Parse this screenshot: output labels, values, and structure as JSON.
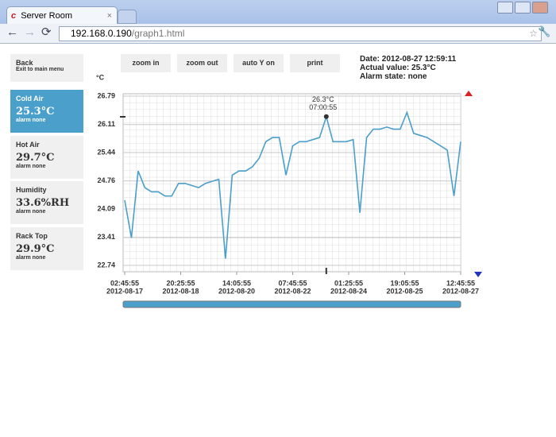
{
  "browser": {
    "tab_title": "Server Room",
    "url_host": "192.168.0.190",
    "url_path": "/graph1.html"
  },
  "sidebar": {
    "back": {
      "title": "Back",
      "subtitle": "Exit to main menu"
    },
    "sensors": [
      {
        "name": "Cold Air",
        "value": "25.3°C",
        "state": "alarm none"
      },
      {
        "name": "Hot Air",
        "value": "29.7°C",
        "state": "alarm none"
      },
      {
        "name": "Humidity",
        "value": "33.6%RH",
        "state": "alarm none"
      },
      {
        "name": "Rack Top",
        "value": "29.9°C",
        "state": "alarm none"
      }
    ]
  },
  "toolbar": [
    "zoom in",
    "zoom out",
    "auto Y on",
    "print"
  ],
  "status": {
    "date": "Date: 2012-08-27 12:59:11",
    "actual": "Actual value: 25.3°C",
    "alarm": "Alarm state: none"
  },
  "chart_data": {
    "type": "line",
    "y_unit": "°C",
    "x": [
      "2012-08-17 02:45:55",
      "2012-08-17 07:45:55",
      "2012-08-17 12:45:55",
      "2012-08-17 17:45:55",
      "2012-08-17 22:45:55",
      "2012-08-18 03:45:55",
      "2012-08-18 08:45:55",
      "2012-08-18 13:45:55",
      "2012-08-18 18:45:55",
      "2012-08-18 23:45:55",
      "2012-08-19 04:45:55",
      "2012-08-19 09:45:55",
      "2012-08-19 14:45:55",
      "2012-08-19 19:45:55",
      "2012-08-20 00:45:55",
      "2012-08-20 05:45:55",
      "2012-08-20 10:45:55",
      "2012-08-20 15:45:55",
      "2012-08-20 20:45:55",
      "2012-08-21 01:45:55",
      "2012-08-21 06:45:55",
      "2012-08-21 11:45:55",
      "2012-08-21 16:45:55",
      "2012-08-21 21:45:55",
      "2012-08-22 02:45:55",
      "2012-08-22 07:45:55",
      "2012-08-22 12:45:55",
      "2012-08-22 17:45:55",
      "2012-08-22 22:45:55",
      "2012-08-23 03:45:55",
      "2012-08-23 08:45:55",
      "2012-08-23 13:45:55",
      "2012-08-23 18:45:55",
      "2012-08-23 23:45:55",
      "2012-08-24 04:45:55",
      "2012-08-24 09:45:55",
      "2012-08-24 14:45:55",
      "2012-08-24 19:45:55",
      "2012-08-25 00:45:55",
      "2012-08-25 05:45:55",
      "2012-08-25 10:45:55",
      "2012-08-25 15:45:55",
      "2012-08-25 20:45:55",
      "2012-08-26 01:45:55",
      "2012-08-26 06:45:55",
      "2012-08-26 11:45:55",
      "2012-08-26 16:45:55",
      "2012-08-26 21:45:55",
      "2012-08-27 02:45:55",
      "2012-08-27 07:45:55",
      "2012-08-27 12:45:55"
    ],
    "series": [
      {
        "color": "#4a9fcb",
        "values": [
          24.3,
          23.4,
          25.0,
          24.6,
          24.5,
          24.5,
          24.4,
          24.4,
          24.7,
          24.7,
          24.65,
          24.6,
          24.7,
          24.75,
          24.8,
          22.9,
          24.9,
          25.0,
          25.0,
          25.1,
          25.3,
          25.7,
          25.8,
          25.8,
          24.9,
          25.6,
          25.7,
          25.7,
          25.75,
          25.8,
          26.3,
          25.7,
          25.7,
          25.7,
          25.75,
          24.0,
          25.8,
          26.0,
          26.0,
          26.05,
          26.0,
          26.0,
          26.4,
          25.9,
          25.85,
          25.8,
          25.7,
          25.6,
          25.5,
          24.4,
          25.7
        ]
      }
    ],
    "ylim": [
      22.74,
      26.79
    ],
    "yticks": [
      22.74,
      23.41,
      24.09,
      24.76,
      25.44,
      26.11,
      26.79
    ],
    "xlim": [
      "2012-08-17 02:45:55",
      "2012-08-27 12:45:55"
    ],
    "xticks": [
      {
        "time": "02:45:55",
        "date": "2012-08-17"
      },
      {
        "time": "20:25:55",
        "date": "2012-08-18"
      },
      {
        "time": "14:05:55",
        "date": "2012-08-20"
      },
      {
        "time": "07:45:55",
        "date": "2012-08-22"
      },
      {
        "time": "01:25:55",
        "date": "2012-08-24"
      },
      {
        "time": "19:05:55",
        "date": "2012-08-25"
      },
      {
        "time": "12:45:55",
        "date": "2012-08-27"
      }
    ],
    "grid": true,
    "annotation": {
      "value_label": "26.3°C",
      "time": "07:00:55"
    }
  }
}
